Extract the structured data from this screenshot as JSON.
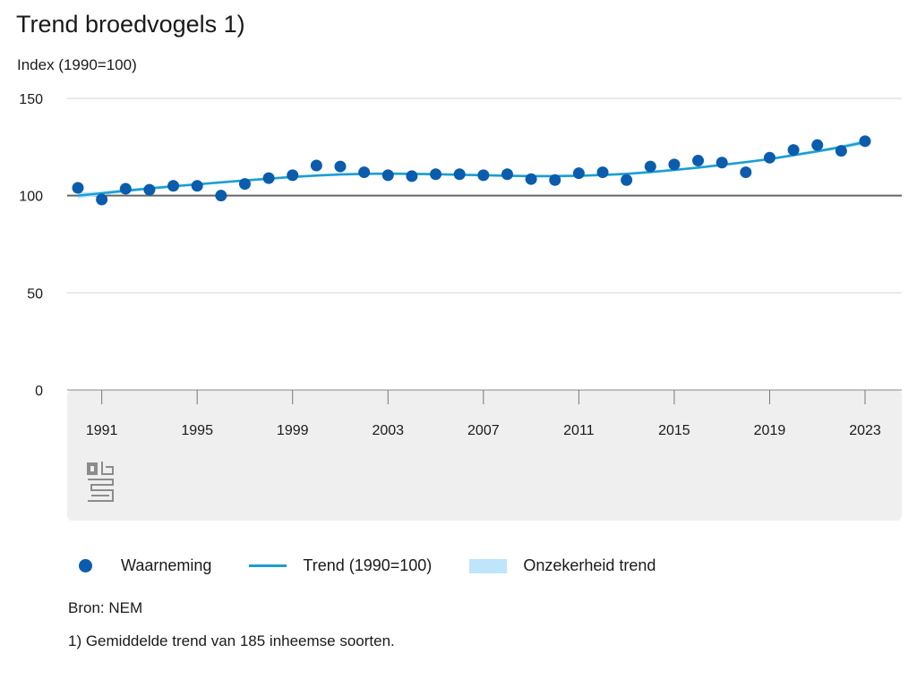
{
  "title": "Trend broedvogels 1)",
  "source": "Bron: NEM",
  "footnote": "1) Gemiddelde trend van 185 inheemse soorten.",
  "colors": {
    "observation": "#0b5cad",
    "trend": "#1a9ed1",
    "band": "#bfe5fa",
    "baseline": "#666666",
    "grid": "#d4d4d4",
    "axis_area": "#efefef"
  },
  "icons": {
    "logo": "cbs-logo"
  },
  "chart_data": {
    "type": "line",
    "ylabel": "Index (1990=100)",
    "ylim": [
      0,
      150
    ],
    "xlim": [
      1990,
      2023
    ],
    "yticks": [
      0,
      50,
      100,
      150
    ],
    "xticks": [
      1991,
      1995,
      1999,
      2003,
      2007,
      2011,
      2015,
      2019,
      2023
    ],
    "reference_line": 100,
    "legend_position": "bottom",
    "grid": true,
    "legend": [
      {
        "key": "observation",
        "label": "Waarneming",
        "kind": "dot"
      },
      {
        "key": "trend",
        "label": "Trend (1990=100)",
        "kind": "line"
      },
      {
        "key": "band",
        "label": "Onzekerheid trend",
        "kind": "band"
      }
    ],
    "series": [
      {
        "name": "Waarneming",
        "kind": "scatter",
        "x": [
          1990,
          1991,
          1992,
          1993,
          1994,
          1995,
          1996,
          1997,
          1998,
          1999,
          2000,
          2001,
          2002,
          2003,
          2004,
          2005,
          2006,
          2007,
          2008,
          2009,
          2010,
          2011,
          2012,
          2013,
          2014,
          2015,
          2016,
          2017,
          2018,
          2019,
          2020,
          2021,
          2022,
          2023
        ],
        "y": [
          104,
          98,
          103.5,
          103,
          105,
          105,
          100,
          106,
          109,
          110.5,
          115.5,
          115,
          112,
          110.5,
          110,
          111,
          111,
          110.5,
          111,
          108.5,
          108,
          111.5,
          112,
          108,
          115,
          116,
          118,
          117,
          112,
          119.5,
          123.5,
          126,
          123,
          128
        ]
      },
      {
        "name": "Trend (1990=100)",
        "kind": "line",
        "x": [
          1990,
          1991,
          1992,
          1993,
          1994,
          1995,
          1996,
          1997,
          1998,
          1999,
          2000,
          2001,
          2002,
          2003,
          2004,
          2005,
          2006,
          2007,
          2008,
          2009,
          2010,
          2011,
          2012,
          2013,
          2014,
          2015,
          2016,
          2017,
          2018,
          2019,
          2020,
          2021,
          2022,
          2023
        ],
        "y": [
          100,
          101.2,
          102.5,
          103.7,
          104.8,
          105.8,
          106.8,
          107.8,
          108.7,
          109.6,
          110.3,
          110.9,
          111.2,
          111.3,
          111.2,
          111,
          110.7,
          110.5,
          110.2,
          110,
          110,
          110.2,
          110.6,
          111.2,
          112.1,
          113.2,
          114.4,
          115.8,
          117.2,
          118.8,
          120.8,
          122.8,
          125,
          127.5
        ]
      },
      {
        "name": "Onzekerheid trend",
        "kind": "band",
        "x": [
          1990,
          1991,
          1992,
          1993,
          1994,
          1995,
          1996,
          1997,
          1998,
          1999,
          2000,
          2001,
          2002,
          2003,
          2004,
          2005,
          2006,
          2007,
          2008,
          2009,
          2010,
          2011,
          2012,
          2013,
          2014,
          2015,
          2016,
          2017,
          2018,
          2019,
          2020,
          2021,
          2022,
          2023
        ],
        "lower": [
          98.5,
          100.2,
          101.6,
          102.9,
          104,
          105.1,
          106.1,
          107.1,
          108,
          108.9,
          109.6,
          110.2,
          110.5,
          110.6,
          110.5,
          110.3,
          110,
          109.8,
          109.5,
          109.3,
          109.3,
          109.5,
          109.9,
          110.5,
          111.4,
          112.5,
          113.7,
          115.1,
          116.5,
          118,
          120,
          122,
          124,
          126.2
        ],
        "upper": [
          101.5,
          102.2,
          103.4,
          104.5,
          105.6,
          106.5,
          107.5,
          108.5,
          109.4,
          110.3,
          111,
          111.6,
          111.9,
          112,
          111.9,
          111.7,
          111.4,
          111.2,
          110.9,
          110.7,
          110.7,
          110.9,
          111.3,
          111.9,
          112.8,
          113.9,
          115.1,
          116.5,
          117.9,
          119.6,
          121.6,
          123.6,
          126,
          128.8
        ]
      }
    ]
  }
}
